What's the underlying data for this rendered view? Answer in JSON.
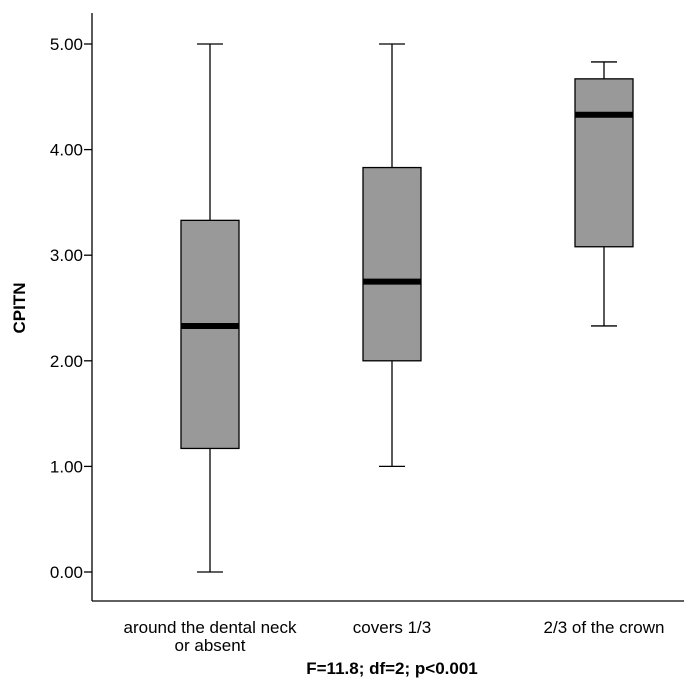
{
  "chart_data": {
    "type": "boxplot",
    "title": "",
    "ylabel": "CPITN",
    "xlabel": "F=11.8; df=2; p<0.001",
    "ylim": [
      0,
      5
    ],
    "y_ticks": [
      0,
      1,
      2,
      3,
      4,
      5
    ],
    "y_tick_labels": [
      "0.00",
      "1.00",
      "2.00",
      "3.00",
      "4.00",
      "5.00"
    ],
    "categories": [
      [
        "around the dental neck",
        "or absent"
      ],
      [
        "covers 1/3"
      ],
      [
        "2/3 of the crown"
      ]
    ],
    "boxes": [
      {
        "min": 0.0,
        "q1": 1.17,
        "median": 2.33,
        "q3": 3.33,
        "max": 5.0
      },
      {
        "min": 1.0,
        "q1": 2.0,
        "median": 2.75,
        "q3": 3.83,
        "max": 5.0
      },
      {
        "min": 2.33,
        "q1": 3.08,
        "median": 4.33,
        "q3": 4.67,
        "max": 4.83
      }
    ],
    "box_color": "#999999",
    "median_color": "#000000",
    "grid": false
  }
}
